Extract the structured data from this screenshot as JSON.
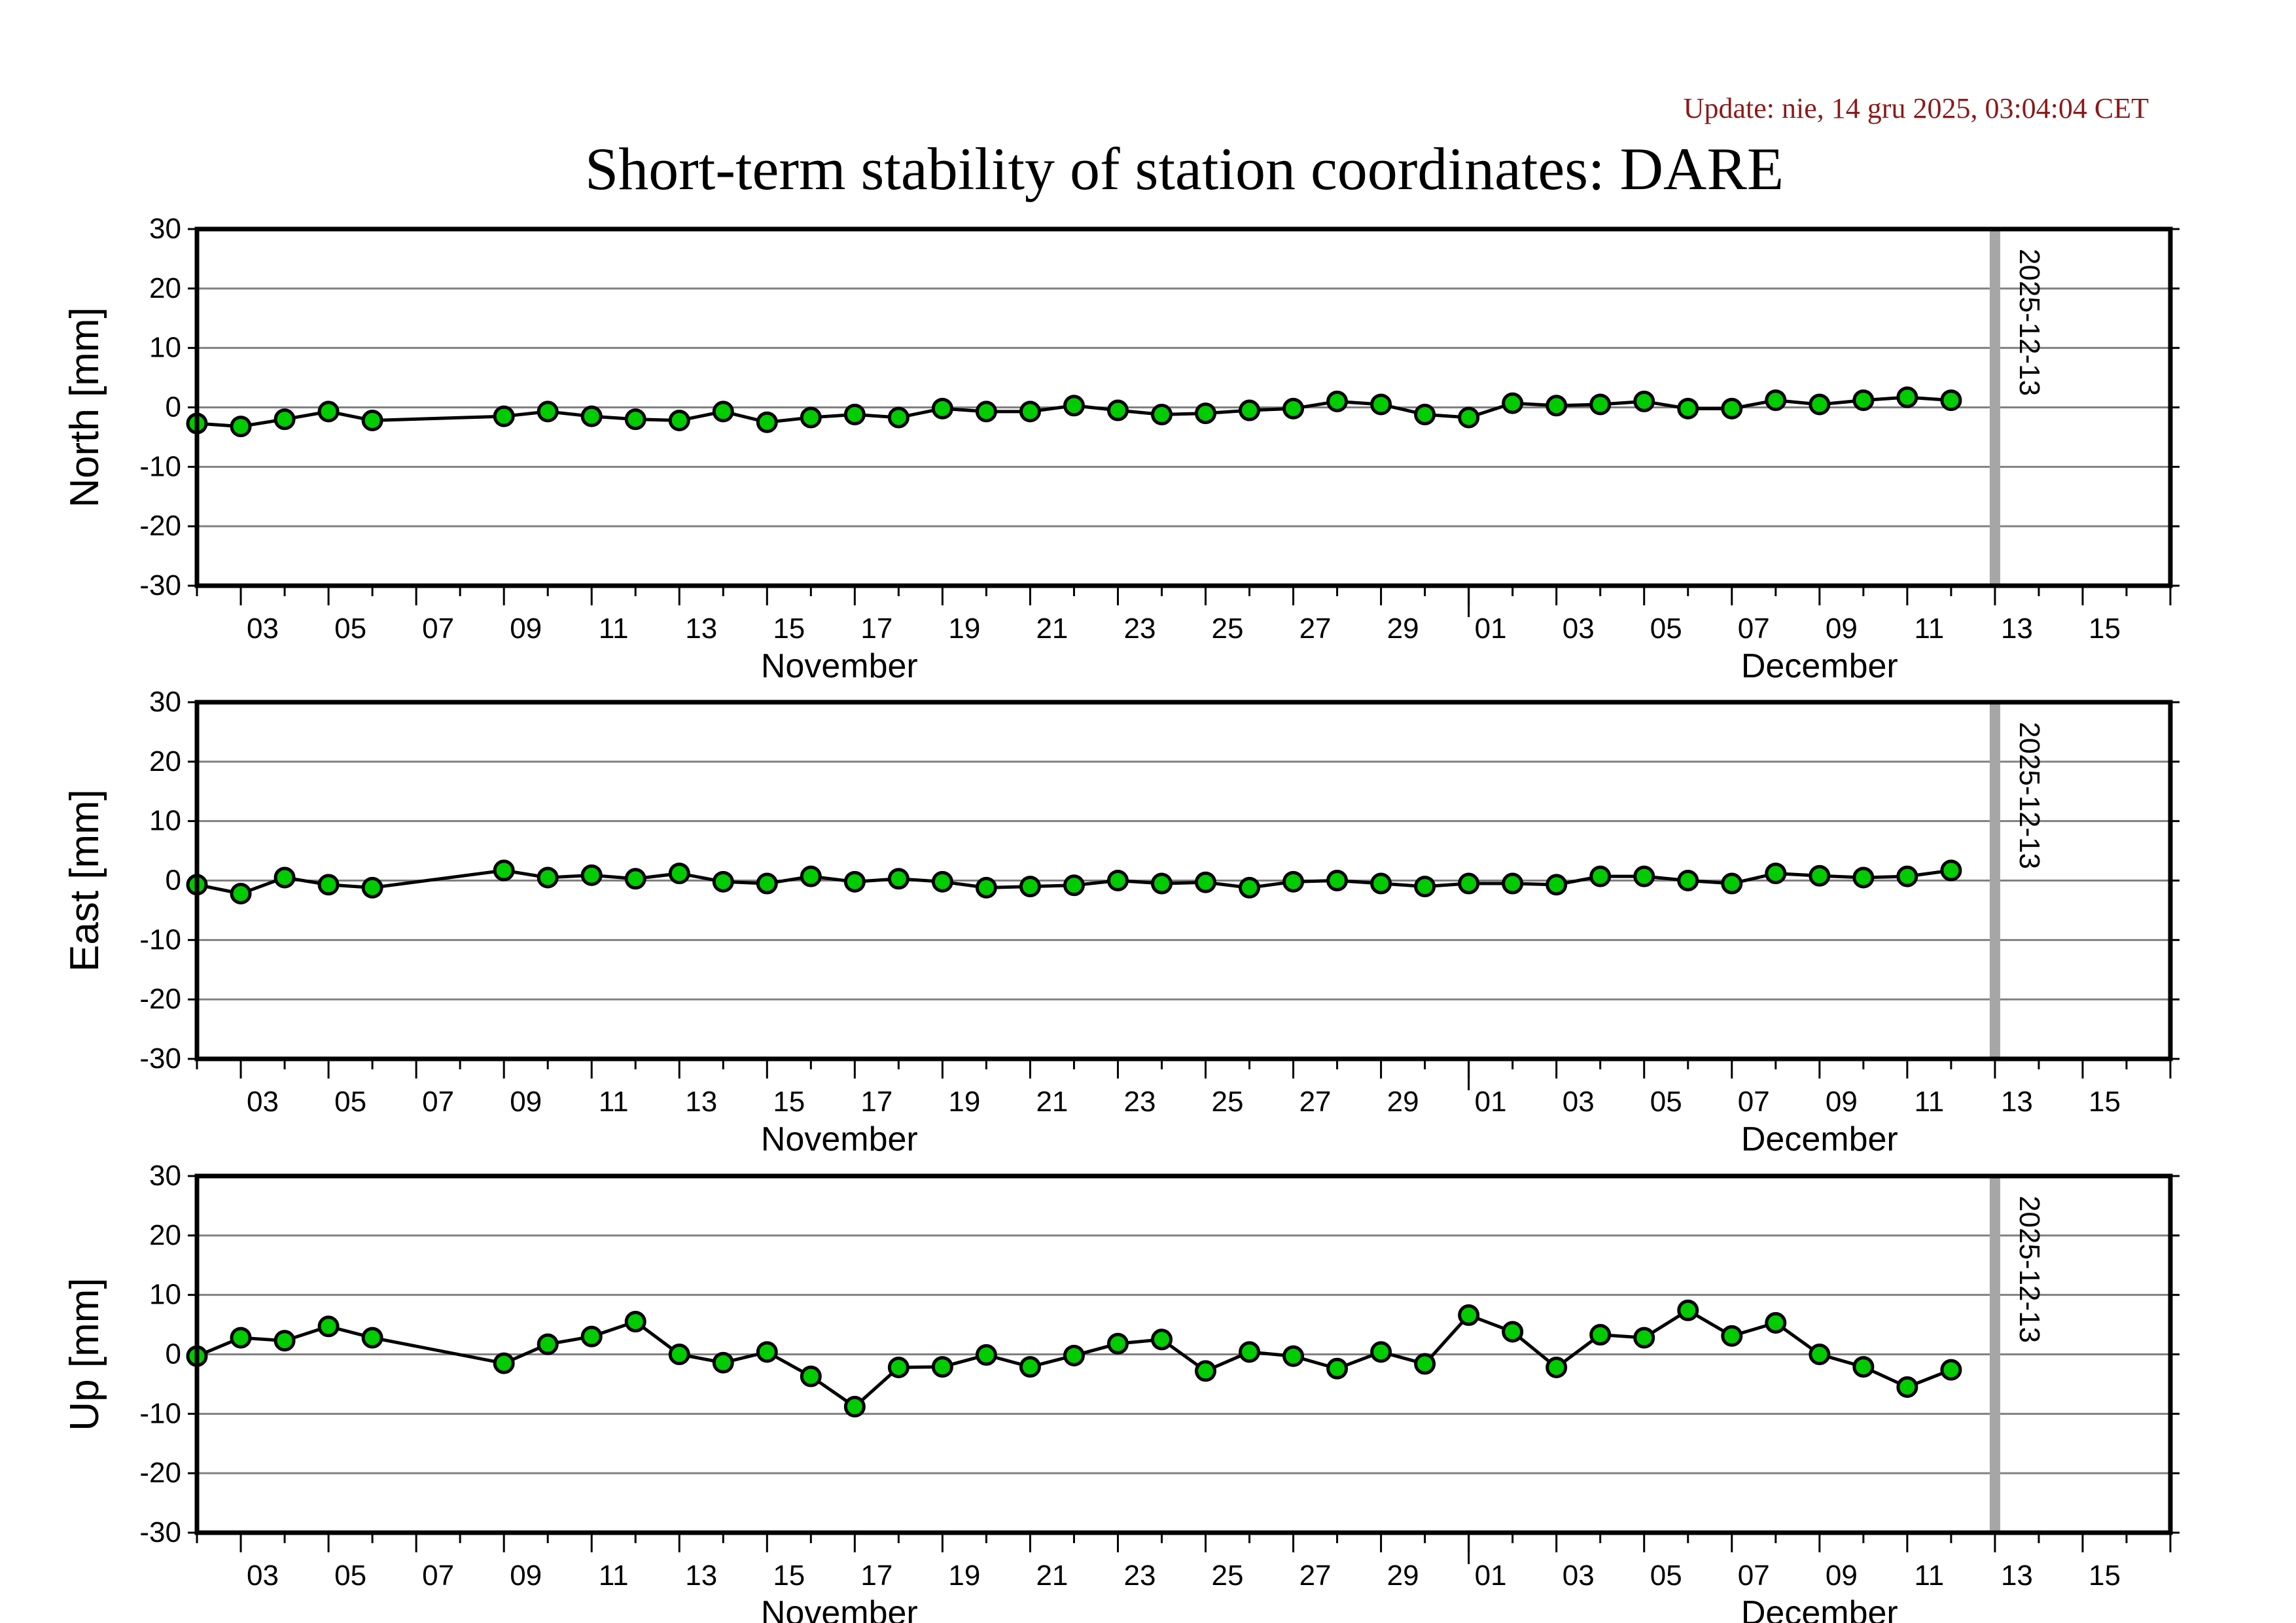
{
  "update_text": "Update: nie, 14 gru 2025, 03:04:04 CET",
  "title": "Short-term stability of station coordinates: DARE",
  "colors": {
    "marker_fill": "#00cc00",
    "marker_edge": "#000000",
    "grid": "#808080",
    "date_marker": "#a6a6a6",
    "update_text": "#8b1a1a"
  },
  "chart_data": [
    {
      "type": "line",
      "ylabel": "North [mm]",
      "ylim": [
        -30,
        30
      ],
      "yticks": [
        30,
        20,
        10,
        0,
        -10,
        -20,
        -30
      ],
      "x_range": [
        "2025-11-02",
        "2025-12-17"
      ],
      "xtick_labels": [
        "03",
        "05",
        "07",
        "09",
        "11",
        "13",
        "15",
        "17",
        "19",
        "21",
        "23",
        "25",
        "27",
        "29",
        "01",
        "03",
        "05",
        "07",
        "09",
        "11",
        "13",
        "15"
      ],
      "month_labels": [
        "November",
        "December"
      ],
      "marker_date": "2025-12-13",
      "grid": true,
      "x": [
        "11-02",
        "11-03",
        "11-04",
        "11-05",
        "11-06",
        "11-09",
        "11-10",
        "11-11",
        "11-12",
        "11-13",
        "11-14",
        "11-15",
        "11-16",
        "11-17",
        "11-18",
        "11-19",
        "11-20",
        "11-21",
        "11-22",
        "11-23",
        "11-24",
        "11-25",
        "11-26",
        "11-27",
        "11-28",
        "11-29",
        "11-30",
        "12-01",
        "12-02",
        "12-03",
        "12-04",
        "12-05",
        "12-06",
        "12-07",
        "12-08",
        "12-09",
        "12-10",
        "12-11",
        "12-12"
      ],
      "values": [
        -2.7,
        -3.2,
        -2.0,
        -0.7,
        -2.2,
        -1.5,
        -0.7,
        -1.5,
        -2.0,
        -2.2,
        -0.7,
        -2.5,
        -1.7,
        -1.2,
        -1.7,
        -0.2,
        -0.7,
        -0.7,
        0.3,
        -0.5,
        -1.2,
        -1.0,
        -0.5,
        -0.2,
        1.0,
        0.5,
        -1.2,
        -1.7,
        0.7,
        0.3,
        0.5,
        1.0,
        -0.2,
        -0.2,
        1.2,
        0.5,
        1.2,
        1.7,
        1.2
      ]
    },
    {
      "type": "line",
      "ylabel": "East [mm]",
      "ylim": [
        -30,
        30
      ],
      "yticks": [
        30,
        20,
        10,
        0,
        -10,
        -20,
        -30
      ],
      "x_range": [
        "2025-11-02",
        "2025-12-17"
      ],
      "xtick_labels": [
        "03",
        "05",
        "07",
        "09",
        "11",
        "13",
        "15",
        "17",
        "19",
        "21",
        "23",
        "25",
        "27",
        "29",
        "01",
        "03",
        "05",
        "07",
        "09",
        "11",
        "13",
        "15"
      ],
      "month_labels": [
        "November",
        "December"
      ],
      "marker_date": "2025-12-13",
      "grid": true,
      "x": [
        "11-02",
        "11-03",
        "11-04",
        "11-05",
        "11-06",
        "11-09",
        "11-10",
        "11-11",
        "11-12",
        "11-13",
        "11-14",
        "11-15",
        "11-16",
        "11-17",
        "11-18",
        "11-19",
        "11-20",
        "11-21",
        "11-22",
        "11-23",
        "11-24",
        "11-25",
        "11-26",
        "11-27",
        "11-28",
        "11-29",
        "11-30",
        "12-01",
        "12-02",
        "12-03",
        "12-04",
        "12-05",
        "12-06",
        "12-07",
        "12-08",
        "12-09",
        "12-10",
        "12-11",
        "12-12"
      ],
      "values": [
        -0.7,
        -2.2,
        0.5,
        -0.7,
        -1.2,
        1.7,
        0.5,
        0.9,
        0.3,
        1.2,
        -0.2,
        -0.5,
        0.7,
        -0.2,
        0.3,
        -0.2,
        -1.2,
        -1.0,
        -0.8,
        0.0,
        -0.5,
        -0.3,
        -1.2,
        -0.2,
        0.0,
        -0.5,
        -1.0,
        -0.5,
        -0.5,
        -0.7,
        0.7,
        0.7,
        0.0,
        -0.5,
        1.2,
        0.8,
        0.5,
        0.7,
        1.7
      ]
    },
    {
      "type": "line",
      "ylabel": "Up [mm]",
      "ylim": [
        -30,
        30
      ],
      "yticks": [
        30,
        20,
        10,
        0,
        -10,
        -20,
        -30
      ],
      "x_range": [
        "2025-11-02",
        "2025-12-17"
      ],
      "xtick_labels": [
        "03",
        "05",
        "07",
        "09",
        "11",
        "13",
        "15",
        "17",
        "19",
        "21",
        "23",
        "25",
        "27",
        "29",
        "01",
        "03",
        "05",
        "07",
        "09",
        "11",
        "13",
        "15"
      ],
      "month_labels": [
        "November",
        "December"
      ],
      "marker_date": "2025-12-13",
      "grid": true,
      "x": [
        "11-02",
        "11-03",
        "11-04",
        "11-05",
        "11-06",
        "11-09",
        "11-10",
        "11-11",
        "11-12",
        "11-13",
        "11-14",
        "11-15",
        "11-16",
        "11-17",
        "11-18",
        "11-19",
        "11-20",
        "11-21",
        "11-22",
        "11-23",
        "11-24",
        "11-25",
        "11-26",
        "11-27",
        "11-28",
        "11-29",
        "11-30",
        "12-01",
        "12-02",
        "12-03",
        "12-04",
        "12-05",
        "12-06",
        "12-07",
        "12-08",
        "12-09",
        "12-10",
        "12-11",
        "12-12"
      ],
      "values": [
        -0.3,
        2.8,
        2.3,
        4.7,
        2.8,
        -1.5,
        1.7,
        3.0,
        5.5,
        0.0,
        -1.4,
        0.4,
        -3.7,
        -8.8,
        -2.2,
        -2.1,
        -0.1,
        -2.1,
        -0.2,
        1.8,
        2.5,
        -2.8,
        0.4,
        -0.3,
        -2.4,
        0.4,
        -1.6,
        6.6,
        3.8,
        -2.2,
        3.3,
        2.8,
        7.4,
        3.1,
        5.3,
        0.0,
        -2.1,
        -5.5,
        -2.6
      ]
    }
  ]
}
